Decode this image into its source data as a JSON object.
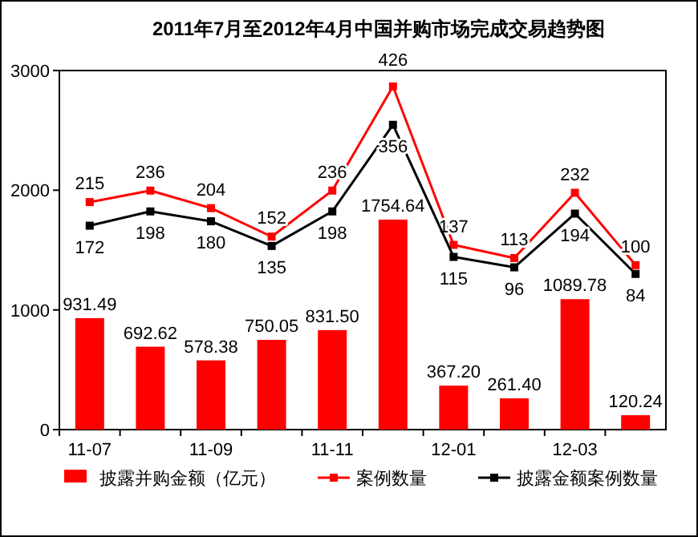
{
  "chart_data": {
    "type": "bar",
    "title": "2011年7月至2012年4月中国并购市场完成交易趋势图",
    "categories": [
      "11-07",
      null,
      "11-09",
      null,
      "11-11",
      null,
      "12-01",
      null,
      "12-03",
      null
    ],
    "ylim": [
      0,
      3000
    ],
    "yticks": [
      0,
      1000,
      2000,
      3000
    ],
    "y2lim": [
      -200,
      455
    ],
    "grid": false,
    "legend": "bottom",
    "marker": "square",
    "series": [
      {
        "name": "披露并购金额（亿元）",
        "color": "#ff0000",
        "values": [
          931.49,
          692.62,
          578.38,
          750.05,
          831.5,
          1754.64,
          367.2,
          261.4,
          1089.78,
          120.24
        ],
        "value_labels": [
          "931.49",
          "692.62",
          "578.38",
          "750.05",
          "831.50",
          "1754.64",
          "367.20",
          "261.40",
          "1089.78",
          "120.24"
        ]
      },
      {
        "name": "案例数量",
        "type": "line",
        "axis": "y2",
        "color": "#ff0000",
        "values": [
          215,
          236,
          204,
          152,
          236,
          426,
          137,
          113,
          232,
          100
        ],
        "value_labels": [
          "215",
          "236",
          "204",
          "152",
          "236",
          "426",
          "137",
          "113",
          "232",
          "100"
        ]
      },
      {
        "name": "披露金额案例数量",
        "type": "line",
        "axis": "y2",
        "color": "#000000",
        "values": [
          172,
          198,
          180,
          135,
          198,
          356,
          115,
          96,
          194,
          84
        ],
        "value_labels": [
          "172",
          "198",
          "180",
          "135",
          "198",
          "356",
          "115",
          "96",
          "194",
          "84"
        ]
      }
    ]
  }
}
